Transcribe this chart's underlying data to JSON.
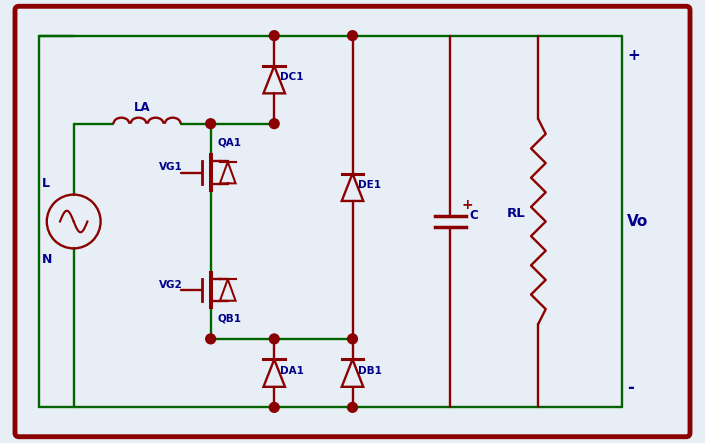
{
  "bg_color": "#e8eef5",
  "border_color": "#8b0000",
  "wire_color": "#006400",
  "component_color": "#8b0000",
  "label_color": "#00008b",
  "node_color": "#8b0000",
  "fig_width": 7.05,
  "fig_height": 4.43,
  "dpi": 100,
  "xlim": [
    0,
    14
  ],
  "ylim": [
    0,
    9
  ]
}
